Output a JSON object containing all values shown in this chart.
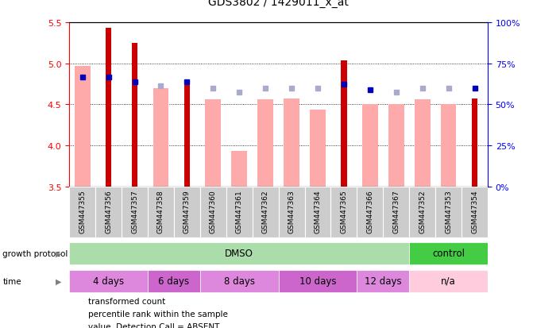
{
  "title": "GDS3802 / 1429011_x_at",
  "samples": [
    "GSM447355",
    "GSM447356",
    "GSM447357",
    "GSM447358",
    "GSM447359",
    "GSM447360",
    "GSM447361",
    "GSM447362",
    "GSM447363",
    "GSM447364",
    "GSM447365",
    "GSM447366",
    "GSM447367",
    "GSM447352",
    "GSM447353",
    "GSM447354"
  ],
  "transformed_count": [
    null,
    5.43,
    5.25,
    null,
    4.78,
    null,
    null,
    null,
    null,
    null,
    5.04,
    null,
    null,
    null,
    null,
    4.57
  ],
  "value_absent": [
    4.97,
    null,
    null,
    4.7,
    null,
    4.56,
    3.93,
    4.56,
    4.57,
    4.44,
    null,
    4.5,
    4.5,
    4.56,
    4.5,
    null
  ],
  "percentile_present": [
    4.83,
    4.83,
    4.78,
    null,
    4.78,
    null,
    null,
    null,
    null,
    null,
    4.75,
    4.68,
    null,
    null,
    null,
    4.7
  ],
  "rank_absent": [
    null,
    null,
    null,
    4.73,
    null,
    4.7,
    4.65,
    4.7,
    4.7,
    4.7,
    null,
    null,
    4.65,
    4.7,
    4.7,
    null
  ],
  "growth_protocol_groups": [
    {
      "label": "DMSO",
      "start": 0,
      "end": 12,
      "color": "#aaddaa"
    },
    {
      "label": "control",
      "start": 13,
      "end": 15,
      "color": "#44cc44"
    }
  ],
  "time_groups": [
    {
      "label": "4 days",
      "start": 0,
      "end": 2,
      "color": "#dd88dd"
    },
    {
      "label": "6 days",
      "start": 3,
      "end": 4,
      "color": "#cc66cc"
    },
    {
      "label": "8 days",
      "start": 5,
      "end": 7,
      "color": "#dd88dd"
    },
    {
      "label": "10 days",
      "start": 8,
      "end": 10,
      "color": "#cc66cc"
    },
    {
      "label": "12 days",
      "start": 11,
      "end": 12,
      "color": "#dd88dd"
    },
    {
      "label": "n/a",
      "start": 13,
      "end": 15,
      "color": "#ffccdd"
    }
  ],
  "ylim": [
    3.5,
    5.5
  ],
  "yticks_left": [
    3.5,
    4.0,
    4.5,
    5.0,
    5.5
  ],
  "yticks_right_pct": [
    0,
    25,
    50,
    75,
    100
  ],
  "transformed_color": "#cc0000",
  "absent_value_color": "#ffaaaa",
  "present_rank_color": "#0000bb",
  "absent_rank_color": "#aaaacc",
  "gray_bg": "#cccccc"
}
